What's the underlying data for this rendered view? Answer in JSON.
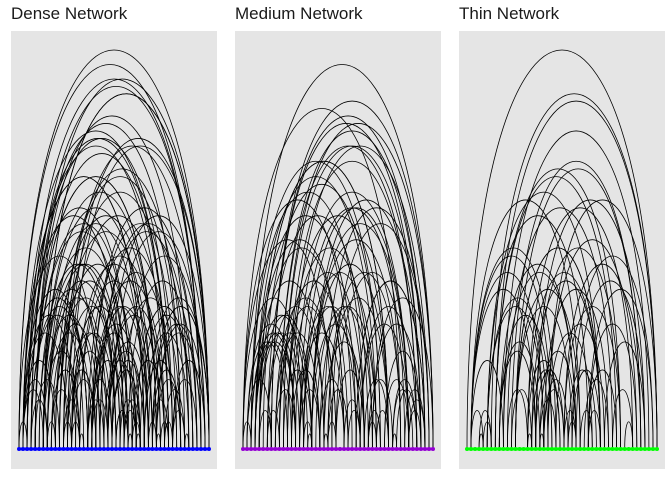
{
  "panels": [
    {
      "title": "Dense Network",
      "node_color": "#0000ff",
      "nodes": 48,
      "arcs": 140,
      "seed": 11
    },
    {
      "title": "Medium Network",
      "node_color": "#9400d3",
      "nodes": 48,
      "arcs": 100,
      "seed": 37
    },
    {
      "title": "Thin Network",
      "node_color": "#00ff00",
      "nodes": 48,
      "arcs": 70,
      "seed": 73
    }
  ]
}
